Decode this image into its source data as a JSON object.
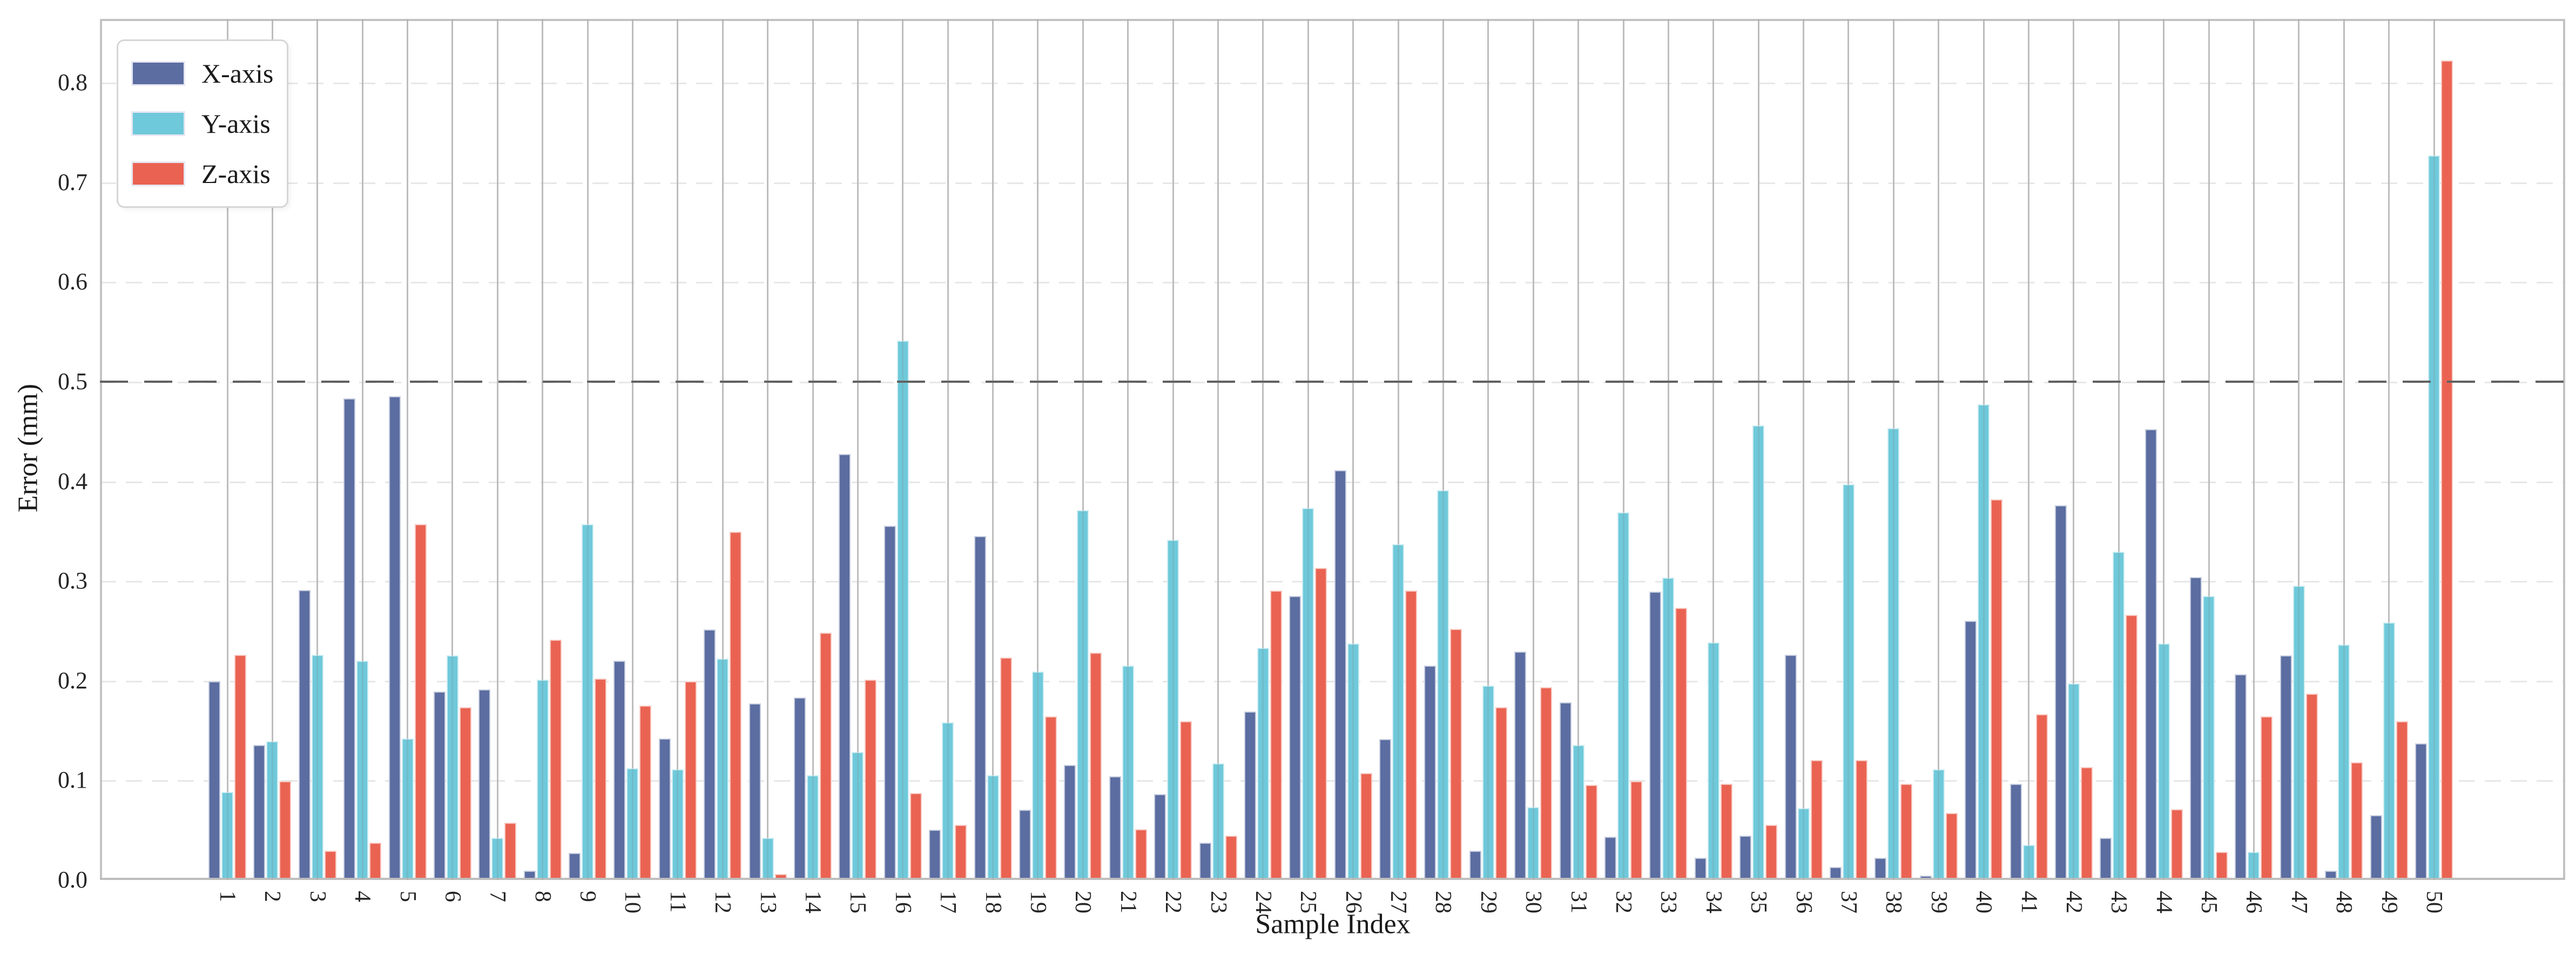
{
  "chart_data": {
    "type": "bar",
    "title": "",
    "xlabel": "Sample Index",
    "ylabel": "Error (mm)",
    "legend_position": "upper left",
    "ylim": [
      0,
      0.864
    ],
    "yticks": [
      "0.0",
      "0.1",
      "0.2",
      "0.3",
      "0.4",
      "0.5",
      "0.6",
      "0.7",
      "0.8"
    ],
    "threshold_value": 0.5,
    "grid": {
      "vertical_solid": true,
      "horizontal_dashed": true
    },
    "colors": {
      "x_series": "#5b6da1",
      "y_series": "#6ec9da",
      "z_series": "#ea6352",
      "threshold_line": "#616161",
      "vertical_grid": "#cbcbcb",
      "horizontal_grid": "#e7e7e7"
    },
    "categories": [
      "1",
      "2",
      "3",
      "4",
      "5",
      "6",
      "7",
      "8",
      "9",
      "10",
      "11",
      "12",
      "13",
      "14",
      "15",
      "16",
      "17",
      "18",
      "19",
      "20",
      "21",
      "22",
      "23",
      "24",
      "25",
      "26",
      "27",
      "28",
      "29",
      "30",
      "31",
      "32",
      "33",
      "34",
      "35",
      "36",
      "37",
      "38",
      "39",
      "40",
      "41",
      "42",
      "43",
      "44",
      "45",
      "46",
      "47",
      "48",
      "49",
      "50"
    ],
    "series": [
      {
        "name": "X-axis",
        "color": "#5b6da1",
        "values": [
          0.197,
          0.133,
          0.289,
          0.481,
          0.483,
          0.187,
          0.189,
          0.007,
          0.025,
          0.218,
          0.14,
          0.249,
          0.175,
          0.181,
          0.425,
          0.353,
          0.048,
          0.343,
          0.068,
          0.113,
          0.102,
          0.084,
          0.035,
          0.167,
          0.283,
          0.409,
          0.139,
          0.213,
          0.027,
          0.227,
          0.176,
          0.041,
          0.287,
          0.02,
          0.042,
          0.224,
          0.011,
          0.02,
          0.002,
          0.258,
          0.094,
          0.374,
          0.04,
          0.45,
          0.302,
          0.204,
          0.223,
          0.007,
          0.063,
          0.135
        ]
      },
      {
        "name": "Y-axis",
        "color": "#6ec9da",
        "values": [
          0.086,
          0.137,
          0.224,
          0.218,
          0.14,
          0.223,
          0.04,
          0.199,
          0.355,
          0.11,
          0.109,
          0.22,
          0.04,
          0.103,
          0.126,
          0.539,
          0.156,
          0.103,
          0.207,
          0.369,
          0.213,
          0.339,
          0.115,
          0.231,
          0.371,
          0.235,
          0.335,
          0.389,
          0.193,
          0.071,
          0.133,
          0.367,
          0.301,
          0.236,
          0.454,
          0.07,
          0.395,
          0.451,
          0.109,
          0.475,
          0.033,
          0.195,
          0.327,
          0.235,
          0.283,
          0.026,
          0.293,
          0.234,
          0.256,
          0.725
        ]
      },
      {
        "name": "Z-axis",
        "color": "#ea6352",
        "values": [
          0.224,
          0.097,
          0.027,
          0.035,
          0.355,
          0.171,
          0.055,
          0.239,
          0.2,
          0.173,
          0.197,
          0.347,
          0.004,
          0.246,
          0.199,
          0.085,
          0.053,
          0.221,
          0.162,
          0.226,
          0.049,
          0.157,
          0.042,
          0.288,
          0.311,
          0.105,
          0.288,
          0.25,
          0.171,
          0.191,
          0.093,
          0.097,
          0.271,
          0.094,
          0.053,
          0.118,
          0.118,
          0.094,
          0.065,
          0.38,
          0.164,
          0.111,
          0.264,
          0.069,
          0.026,
          0.162,
          0.185,
          0.116,
          0.157,
          0.82
        ]
      }
    ]
  }
}
